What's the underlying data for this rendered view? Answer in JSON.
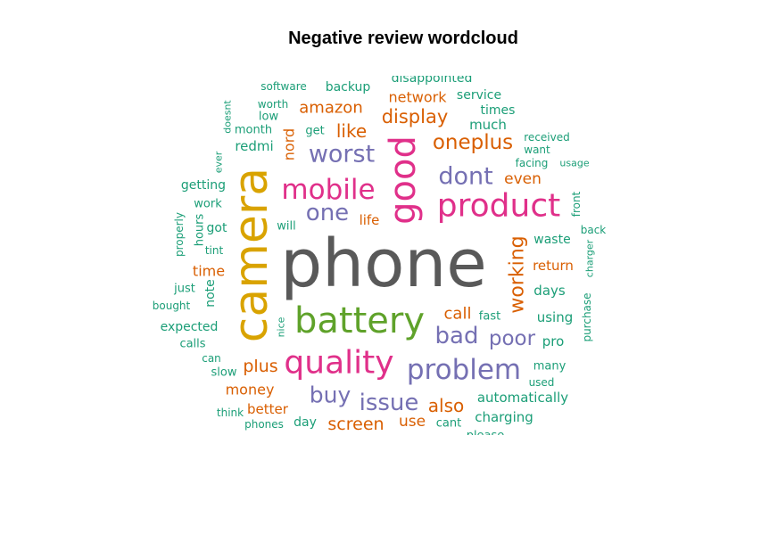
{
  "chart_data": {
    "type": "wordcloud",
    "title": "Negative review wordcloud",
    "colors": {
      "gray": "#595959",
      "gold": "#D9A300",
      "green": "#5FA22A",
      "magenta": "#E0308A",
      "purple": "#7570B3",
      "orange": "#D95F02",
      "teal": "#1B9E77"
    },
    "words": [
      {
        "text": "phone",
        "color": "gray"
      },
      {
        "text": "camera",
        "color": "gold"
      },
      {
        "text": "battery",
        "color": "green"
      },
      {
        "text": "good",
        "color": "magenta"
      },
      {
        "text": "product",
        "color": "magenta"
      },
      {
        "text": "quality",
        "color": "magenta"
      },
      {
        "text": "mobile",
        "color": "magenta"
      },
      {
        "text": "problem",
        "color": "purple"
      },
      {
        "text": "worst",
        "color": "purple"
      },
      {
        "text": "dont",
        "color": "purple"
      },
      {
        "text": "one",
        "color": "purple"
      },
      {
        "text": "bad",
        "color": "purple"
      },
      {
        "text": "issue",
        "color": "purple"
      },
      {
        "text": "buy",
        "color": "purple"
      },
      {
        "text": "poor",
        "color": "purple"
      },
      {
        "text": "oneplus",
        "color": "orange"
      },
      {
        "text": "display",
        "color": "orange"
      },
      {
        "text": "like",
        "color": "orange"
      },
      {
        "text": "working",
        "color": "orange"
      },
      {
        "text": "amazon",
        "color": "orange"
      },
      {
        "text": "network",
        "color": "orange"
      },
      {
        "text": "even",
        "color": "orange"
      },
      {
        "text": "plus",
        "color": "orange"
      },
      {
        "text": "money",
        "color": "orange"
      },
      {
        "text": "screen",
        "color": "orange"
      },
      {
        "text": "also",
        "color": "orange"
      },
      {
        "text": "call",
        "color": "orange"
      },
      {
        "text": "use",
        "color": "orange"
      },
      {
        "text": "return",
        "color": "orange"
      },
      {
        "text": "nord",
        "color": "orange"
      },
      {
        "text": "time",
        "color": "orange"
      },
      {
        "text": "life",
        "color": "orange"
      },
      {
        "text": "better",
        "color": "orange"
      },
      {
        "text": "disappointed",
        "color": "teal"
      },
      {
        "text": "software",
        "color": "teal"
      },
      {
        "text": "backup",
        "color": "teal"
      },
      {
        "text": "service",
        "color": "teal"
      },
      {
        "text": "worth",
        "color": "teal"
      },
      {
        "text": "times",
        "color": "teal"
      },
      {
        "text": "low",
        "color": "teal"
      },
      {
        "text": "much",
        "color": "teal"
      },
      {
        "text": "doesnt",
        "color": "teal"
      },
      {
        "text": "month",
        "color": "teal"
      },
      {
        "text": "get",
        "color": "teal"
      },
      {
        "text": "received",
        "color": "teal"
      },
      {
        "text": "redmi",
        "color": "teal"
      },
      {
        "text": "want",
        "color": "teal"
      },
      {
        "text": "ever",
        "color": "teal"
      },
      {
        "text": "facing",
        "color": "teal"
      },
      {
        "text": "usage",
        "color": "teal"
      },
      {
        "text": "getting",
        "color": "teal"
      },
      {
        "text": "front",
        "color": "teal"
      },
      {
        "text": "work",
        "color": "teal"
      },
      {
        "text": "hours",
        "color": "teal"
      },
      {
        "text": "got",
        "color": "teal"
      },
      {
        "text": "will",
        "color": "teal"
      },
      {
        "text": "back",
        "color": "teal"
      },
      {
        "text": "properly",
        "color": "teal"
      },
      {
        "text": "waste",
        "color": "teal"
      },
      {
        "text": "tint",
        "color": "teal"
      },
      {
        "text": "charger",
        "color": "teal"
      },
      {
        "text": "just",
        "color": "teal"
      },
      {
        "text": "note",
        "color": "teal"
      },
      {
        "text": "days",
        "color": "teal"
      },
      {
        "text": "bought",
        "color": "teal"
      },
      {
        "text": "purchase",
        "color": "teal"
      },
      {
        "text": "nice",
        "color": "teal"
      },
      {
        "text": "fast",
        "color": "teal"
      },
      {
        "text": "using",
        "color": "teal"
      },
      {
        "text": "expected",
        "color": "teal"
      },
      {
        "text": "pro",
        "color": "teal"
      },
      {
        "text": "calls",
        "color": "teal"
      },
      {
        "text": "can",
        "color": "teal"
      },
      {
        "text": "many",
        "color": "teal"
      },
      {
        "text": "slow",
        "color": "teal"
      },
      {
        "text": "used",
        "color": "teal"
      },
      {
        "text": "automatically",
        "color": "teal"
      },
      {
        "text": "think",
        "color": "teal"
      },
      {
        "text": "day",
        "color": "teal"
      },
      {
        "text": "charging",
        "color": "teal"
      },
      {
        "text": "phones",
        "color": "teal"
      },
      {
        "text": "cant",
        "color": "teal"
      },
      {
        "text": "please",
        "color": "teal"
      }
    ]
  }
}
